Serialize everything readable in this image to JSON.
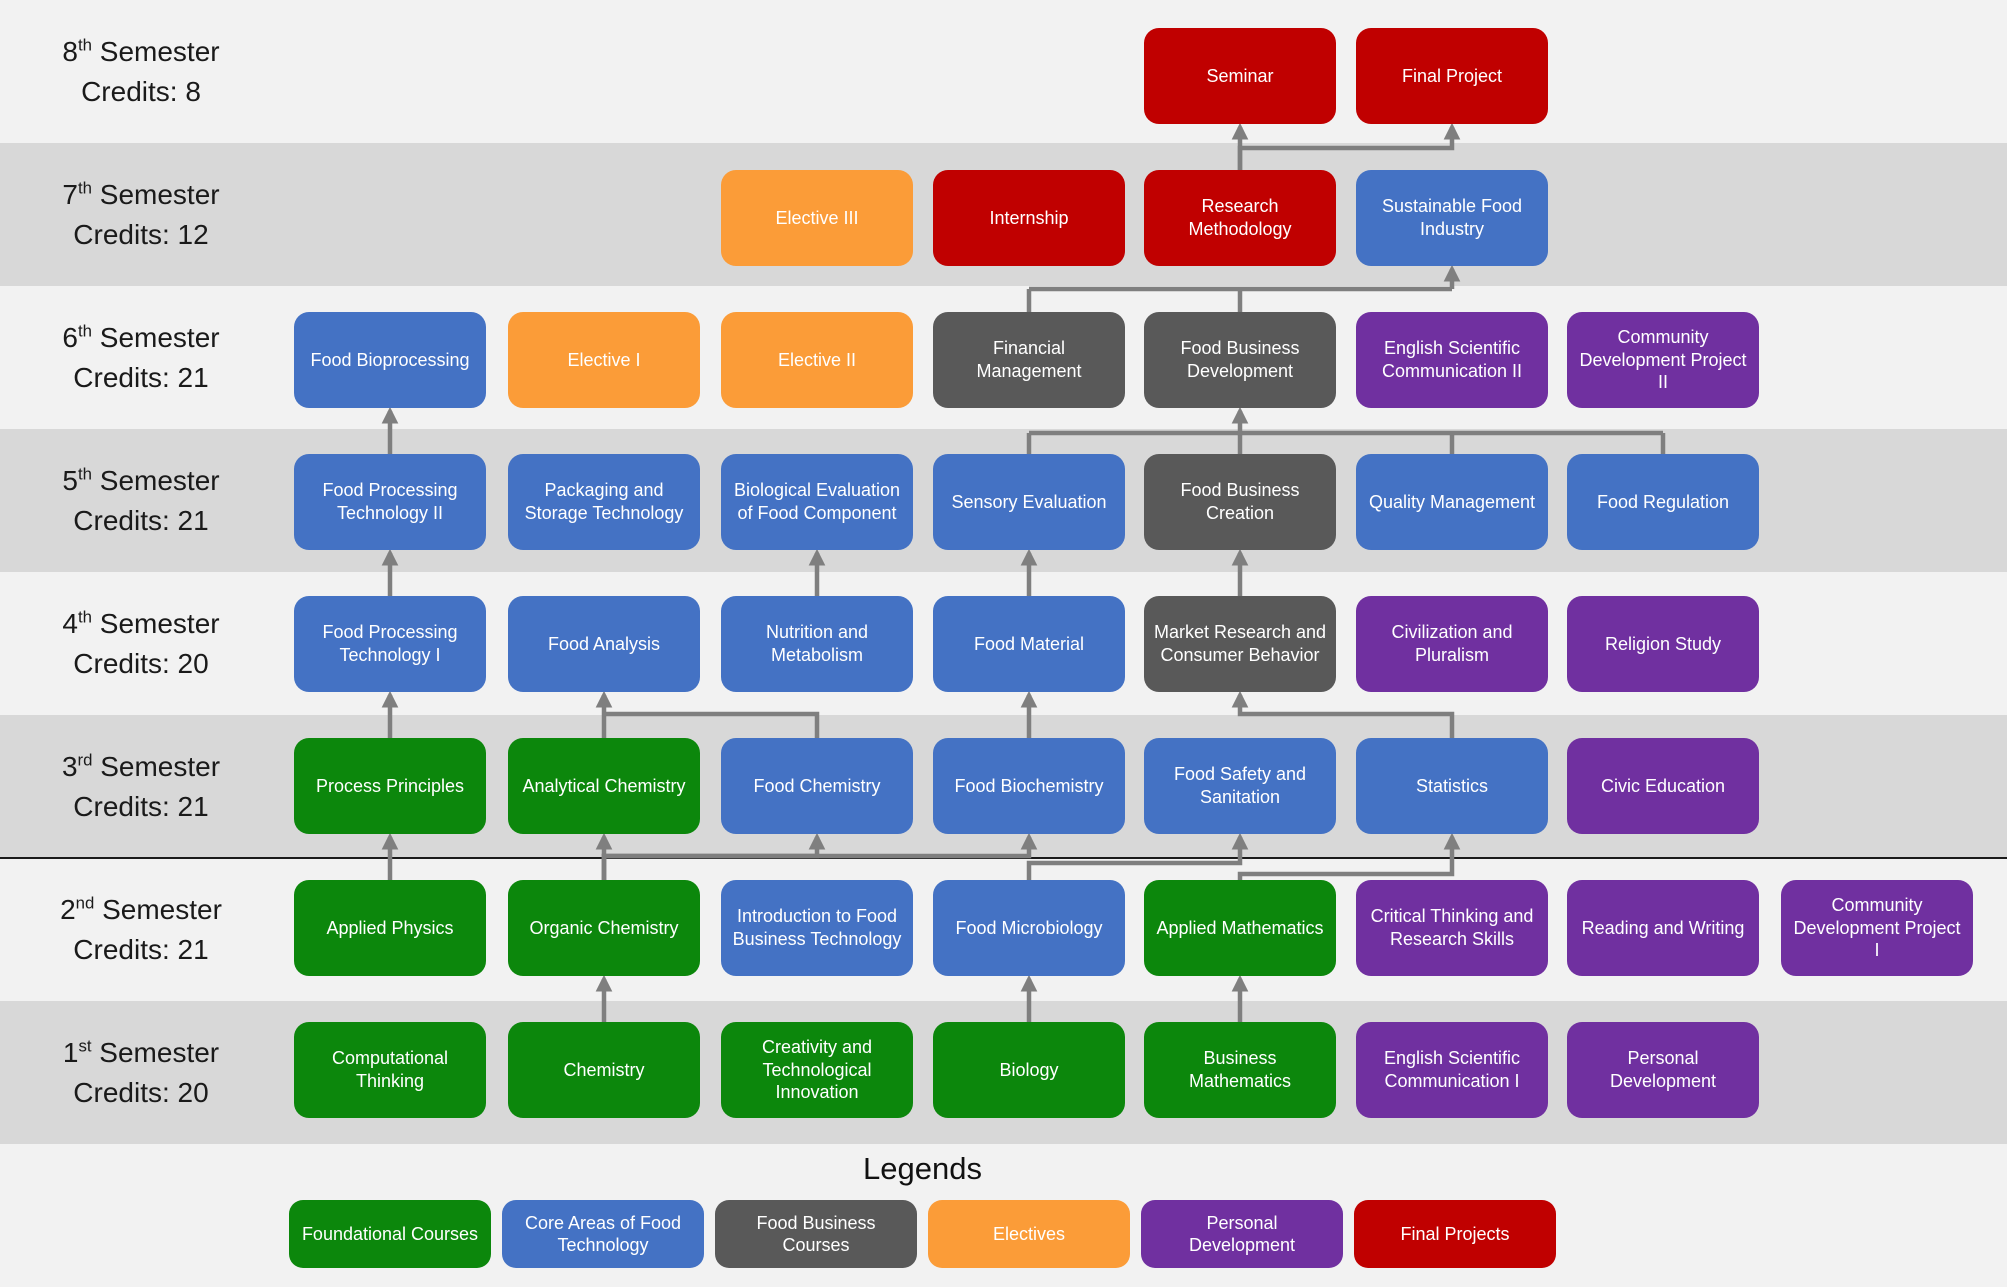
{
  "palette": {
    "band_light": "#F2F2F2",
    "band_dark": "#D8D8D8",
    "divider_line": "#1A1A1A",
    "arrow": "#7F7F7F",
    "label_text": "#1A1A1A",
    "categories": {
      "foundational": "#0C870C",
      "core": "#4472C4",
      "business": "#595959",
      "elective": "#FB9C38",
      "personal": "#7030A0",
      "final": "#C00000"
    }
  },
  "legend": {
    "title": "Legends",
    "items": [
      {
        "label": "Foundational Courses",
        "category": "foundational"
      },
      {
        "label": "Core Areas of Food Technology",
        "category": "core"
      },
      {
        "label": "Food Business Courses",
        "category": "business"
      },
      {
        "label": "Electives",
        "category": "elective"
      },
      {
        "label": "Personal Development",
        "category": "personal"
      },
      {
        "label": "Final Projects",
        "category": "final"
      }
    ]
  },
  "semesters": [
    {
      "row": 8,
      "number": "8",
      "suffix": "th",
      "word": "Semester",
      "credits": "Credits: 8",
      "courses": [
        {
          "label": "Seminar",
          "category": "final",
          "col": 5
        },
        {
          "label": "Final Project",
          "category": "final",
          "col": 6
        }
      ]
    },
    {
      "row": 7,
      "number": "7",
      "suffix": "th",
      "word": "Semester",
      "credits": "Credits: 12",
      "courses": [
        {
          "label": "Elective III",
          "category": "elective",
          "col": 3
        },
        {
          "label": "Internship",
          "category": "final",
          "col": 4
        },
        {
          "label": "Research Methodology",
          "category": "final",
          "col": 5
        },
        {
          "label": "Sustainable Food Industry",
          "category": "core",
          "col": 6
        }
      ]
    },
    {
      "row": 6,
      "number": "6",
      "suffix": "th",
      "word": "Semester",
      "credits": "Credits: 21",
      "courses": [
        {
          "label": "Food Bioprocessing",
          "category": "core",
          "col": 1
        },
        {
          "label": "Elective I",
          "category": "elective",
          "col": 2
        },
        {
          "label": "Elective II",
          "category": "elective",
          "col": 3
        },
        {
          "label": "Financial Management",
          "category": "business",
          "col": 4
        },
        {
          "label": "Food Business Development",
          "category": "business",
          "col": 5
        },
        {
          "label": "English Scientific Communication II",
          "category": "personal",
          "col": 6
        },
        {
          "label": "Community Development Project II",
          "category": "personal",
          "col": 7
        }
      ]
    },
    {
      "row": 5,
      "number": "5",
      "suffix": "th",
      "word": "Semester",
      "credits": "Credits: 21",
      "courses": [
        {
          "label": "Food Processing Technology II",
          "category": "core",
          "col": 1
        },
        {
          "label": "Packaging and Storage Technology",
          "category": "core",
          "col": 2
        },
        {
          "label": "Biological Evaluation of Food Component",
          "category": "core",
          "col": 3
        },
        {
          "label": "Sensory Evaluation",
          "category": "core",
          "col": 4
        },
        {
          "label": "Food Business Creation",
          "category": "business",
          "col": 5
        },
        {
          "label": "Quality Management",
          "category": "core",
          "col": 6
        },
        {
          "label": "Food Regulation",
          "category": "core",
          "col": 7
        }
      ]
    },
    {
      "row": 4,
      "number": "4",
      "suffix": "th",
      "word": "Semester",
      "credits": "Credits: 20",
      "courses": [
        {
          "label": "Food Processing Technology I",
          "category": "core",
          "col": 1
        },
        {
          "label": "Food Analysis",
          "category": "core",
          "col": 2
        },
        {
          "label": "Nutrition and Metabolism",
          "category": "core",
          "col": 3
        },
        {
          "label": "Food Material",
          "category": "core",
          "col": 4
        },
        {
          "label": "Market Research and Consumer Behavior",
          "category": "business",
          "col": 5
        },
        {
          "label": "Civilization and Pluralism",
          "category": "personal",
          "col": 6
        },
        {
          "label": "Religion Study",
          "category": "personal",
          "col": 7
        }
      ]
    },
    {
      "row": 3,
      "number": "3",
      "suffix": "rd",
      "word": "Semester",
      "credits": "Credits: 21",
      "courses": [
        {
          "label": "Process Principles",
          "category": "foundational",
          "col": 1
        },
        {
          "label": "Analytical Chemistry",
          "category": "foundational",
          "col": 2
        },
        {
          "label": "Food Chemistry",
          "category": "core",
          "col": 3
        },
        {
          "label": "Food Biochemistry",
          "category": "core",
          "col": 4
        },
        {
          "label": "Food Safety and Sanitation",
          "category": "core",
          "col": 5
        },
        {
          "label": "Statistics",
          "category": "core",
          "col": 6
        },
        {
          "label": "Civic Education",
          "category": "personal",
          "col": 7
        }
      ]
    },
    {
      "row": 2,
      "number": "2",
      "suffix": "nd",
      "word": "Semester",
      "credits": "Credits: 21",
      "courses": [
        {
          "label": "Applied Physics",
          "category": "foundational",
          "col": 1
        },
        {
          "label": "Organic Chemistry",
          "category": "foundational",
          "col": 2
        },
        {
          "label": "Introduction to Food Business Technology",
          "category": "core",
          "col": 3
        },
        {
          "label": "Food Microbiology",
          "category": "core",
          "col": 4
        },
        {
          "label": "Applied Mathematics",
          "category": "foundational",
          "col": 5
        },
        {
          "label": "Critical Thinking and Research Skills",
          "category": "personal",
          "col": 6
        },
        {
          "label": "Reading and Writing",
          "category": "personal",
          "col": 7
        },
        {
          "label": "Community Development Project I",
          "category": "personal",
          "col": 8
        }
      ]
    },
    {
      "row": 1,
      "number": "1",
      "suffix": "st",
      "word": "Semester",
      "credits": "Credits: 20",
      "courses": [
        {
          "label": "Computational Thinking",
          "category": "foundational",
          "col": 1
        },
        {
          "label": "Chemistry",
          "category": "foundational",
          "col": 2
        },
        {
          "label": "Creativity and Technological Innovation",
          "category": "foundational",
          "col": 3
        },
        {
          "label": "Biology",
          "category": "foundational",
          "col": 4
        },
        {
          "label": "Business Mathematics",
          "category": "foundational",
          "col": 5
        },
        {
          "label": "English Scientific Communication I",
          "category": "personal",
          "col": 6
        },
        {
          "label": "Personal Development",
          "category": "personal",
          "col": 7
        }
      ]
    }
  ],
  "edges": [
    {
      "from": "Chemistry",
      "to": "Organic Chemistry",
      "style": "straight"
    },
    {
      "from": "Biology",
      "to": "Food Microbiology",
      "style": "straight"
    },
    {
      "from": "Business Mathematics",
      "to": "Applied Mathematics",
      "style": "straight"
    },
    {
      "from": "Applied Physics",
      "to": "Process Principles",
      "style": "straight"
    },
    {
      "from": "Organic Chemistry",
      "to": "Analytical Chemistry",
      "style": "straight"
    },
    {
      "from": "Organic Chemistry",
      "to": "Food Chemistry",
      "style": "elbow",
      "hy": 856
    },
    {
      "from": "Organic Chemistry",
      "to": "Food Biochemistry",
      "style": "elbow",
      "hy": 856
    },
    {
      "from": "Food Microbiology",
      "to": "Food Safety and Sanitation",
      "style": "elbow",
      "hy": 863
    },
    {
      "from": "Applied Mathematics",
      "to": "Statistics",
      "style": "elbow",
      "hy": 874
    },
    {
      "from": "Process Principles",
      "to": "Food Processing Technology I",
      "style": "straight"
    },
    {
      "from": "Analytical Chemistry",
      "to": "Food Analysis",
      "style": "straight"
    },
    {
      "from": "Food Chemistry",
      "to": "Food Analysis",
      "style": "elbow",
      "hy": 714,
      "head": false
    },
    {
      "from": "Food Biochemistry",
      "to": "Food Material",
      "style": "straight"
    },
    {
      "from": "Statistics",
      "to": "Market Research and Consumer Behavior",
      "style": "elbow",
      "hy": 714
    },
    {
      "from": "Food Processing Technology I",
      "to": "Food Processing Technology II",
      "style": "straight"
    },
    {
      "from": "Nutrition and Metabolism",
      "to": "Biological Evaluation of Food Component",
      "style": "straight"
    },
    {
      "from": "Food Material",
      "to": "Sensory Evaluation",
      "style": "straight"
    },
    {
      "from": "Market Research and Consumer Behavior",
      "to": "Food Business Creation",
      "style": "straight"
    },
    {
      "from": "Food Processing Technology II",
      "to": "Food Bioprocessing",
      "style": "straight"
    },
    {
      "from_list": [
        "Sensory Evaluation",
        "Food Business Creation",
        "Quality Management",
        "Food Regulation"
      ],
      "to": "Food Business Development",
      "style": "bus",
      "hy": 433
    },
    {
      "from_list": [
        "Financial Management",
        "Food Business Development"
      ],
      "to": "Sustainable Food Industry",
      "style": "bus",
      "hy": 289
    },
    {
      "from": "Research Methodology",
      "to": "Seminar",
      "style": "straight"
    },
    {
      "from": "Research Methodology",
      "to": "Final Project",
      "style": "elbow",
      "hy": 148
    }
  ]
}
